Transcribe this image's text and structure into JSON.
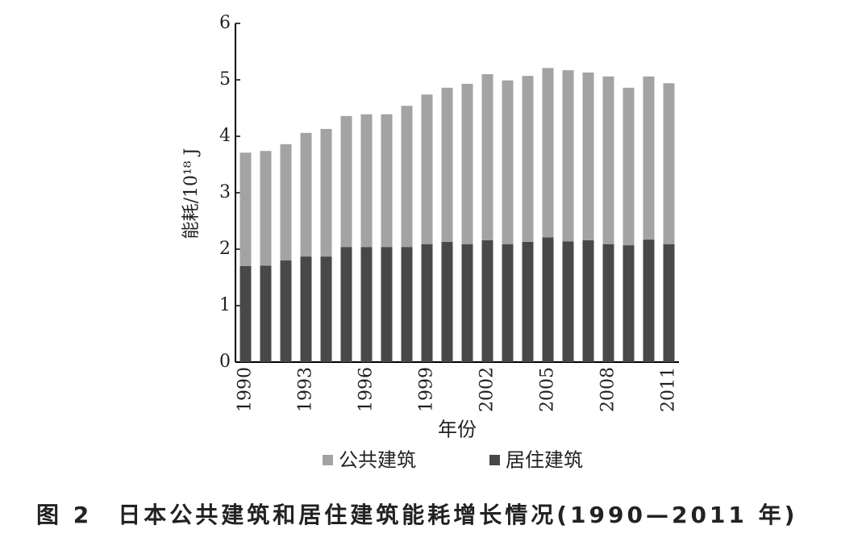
{
  "chart_data": {
    "type": "stacked_bar",
    "ylabel": "能耗/10¹⁸ J",
    "xlabel": "年份",
    "caption": "图 2　日本公共建筑和居住建筑能耗增长情况(1990—2011 年)",
    "categories": [
      "1990",
      null,
      null,
      "1993",
      null,
      null,
      "1996",
      null,
      null,
      "1999",
      null,
      null,
      "2002",
      null,
      null,
      "2005",
      null,
      null,
      "2008",
      null,
      null,
      "2011"
    ],
    "series": [
      {
        "name": "公共建筑",
        "color": "#a3a3a3",
        "values": [
          2.01,
          2.03,
          2.06,
          2.19,
          2.26,
          2.32,
          2.35,
          2.35,
          2.5,
          2.65,
          2.73,
          2.84,
          2.94,
          2.9,
          2.94,
          3.0,
          3.03,
          2.97,
          2.97,
          2.79,
          2.89,
          2.85
        ]
      },
      {
        "name": "居住建筑",
        "color": "#484848",
        "values": [
          1.7,
          1.71,
          1.8,
          1.87,
          1.87,
          2.04,
          2.04,
          2.04,
          2.04,
          2.09,
          2.13,
          2.09,
          2.16,
          2.09,
          2.13,
          2.21,
          2.14,
          2.16,
          2.09,
          2.07,
          2.17,
          2.09
        ]
      }
    ],
    "ylim": [
      0,
      6
    ],
    "yticks": [
      0,
      1,
      2,
      3,
      4,
      5,
      6
    ],
    "grid": false
  }
}
